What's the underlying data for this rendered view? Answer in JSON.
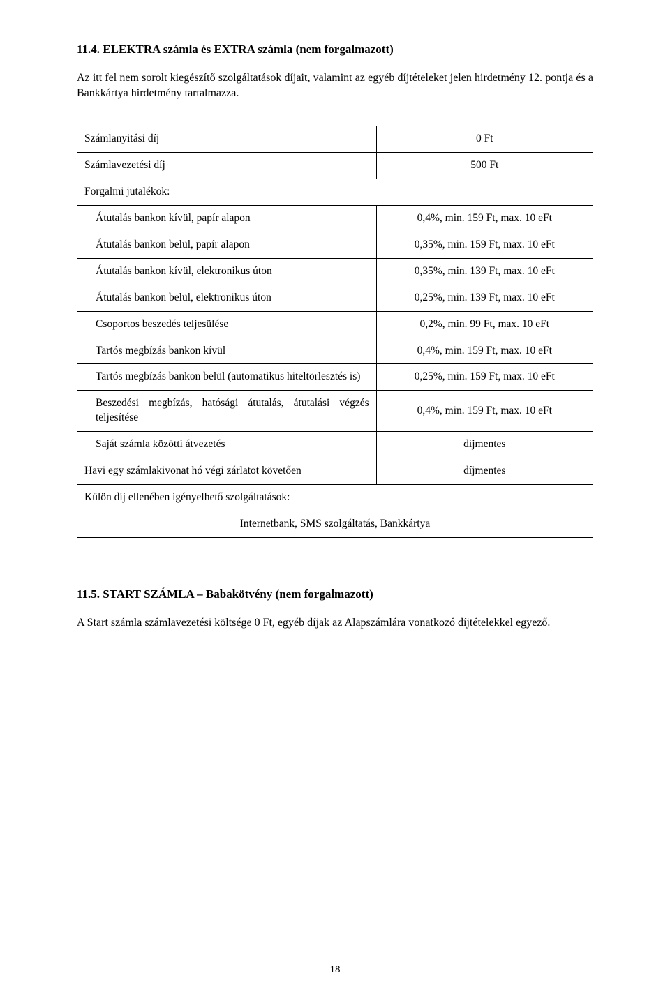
{
  "section114": {
    "heading": "11.4. ELEKTRA számla és EXTRA számla (nem forgalmazott)",
    "paragraph": "Az itt fel nem sorolt kiegészítő szolgáltatások díjait, valamint az egyéb díjtételeket jelen hirdetmény 12. pontja és a Bankkártya hirdetmény tartalmazza."
  },
  "feeTable": {
    "rows": [
      {
        "label": "Számlanyitási díj",
        "value": "0 Ft",
        "indent": false
      },
      {
        "label": "Számlavezetési díj",
        "value": "500 Ft",
        "indent": false
      },
      {
        "label": "Forgalmi jutalékok:",
        "value": "",
        "indent": false,
        "noRightBorder": true
      },
      {
        "label": "Átutalás bankon kívül, papír alapon",
        "value": "0,4%, min. 159 Ft, max. 10 eFt",
        "indent": true
      },
      {
        "label": "Átutalás bankon belül, papír alapon",
        "value": "0,35%, min. 159 Ft, max. 10 eFt",
        "indent": true
      },
      {
        "label": "Átutalás bankon kívül, elektronikus úton",
        "value": "0,35%, min. 139 Ft, max. 10 eFt",
        "indent": true
      },
      {
        "label": "Átutalás bankon belül, elektronikus úton",
        "value": "0,25%, min. 139 Ft, max. 10 eFt",
        "indent": true
      },
      {
        "label": "Csoportos beszedés teljesülése",
        "value": "0,2%, min. 99 Ft, max. 10 eFt",
        "indent": true
      },
      {
        "label": "Tartós megbízás bankon kívül",
        "value": "0,4%, min. 159 Ft, max. 10 eFt",
        "indent": true
      },
      {
        "label": "Tartós megbízás bankon belül (automatikus hiteltörlesztés is)",
        "value": "0,25%, min. 159 Ft, max. 10 eFt",
        "indent": true
      },
      {
        "label": "Beszedési megbízás, hatósági átutalás, átutalási végzés teljesítése",
        "value": "0,4%, min. 159 Ft, max. 10 eFt",
        "indent": true,
        "justify": true
      },
      {
        "label": "Saját számla közötti átvezetés",
        "value": "díjmentes",
        "indent": true
      },
      {
        "label": "Havi egy számlakivonat hó végi zárlatot követően",
        "value": "díjmentes",
        "indent": false
      },
      {
        "label": "Külön díj ellenében igényelhető szolgáltatások:",
        "value": "",
        "indent": false,
        "noRightBorder": true
      }
    ],
    "footerRow": "Internetbank, SMS szolgáltatás, Bankkártya"
  },
  "section115": {
    "heading": "11.5. START SZÁMLA – Babakötvény (nem forgalmazott)",
    "paragraph": "A Start számla számlavezetési költsége 0 Ft, egyéb díjak az Alapszámlára vonatkozó díjtételekkel egyező."
  },
  "pageNumber": "18"
}
